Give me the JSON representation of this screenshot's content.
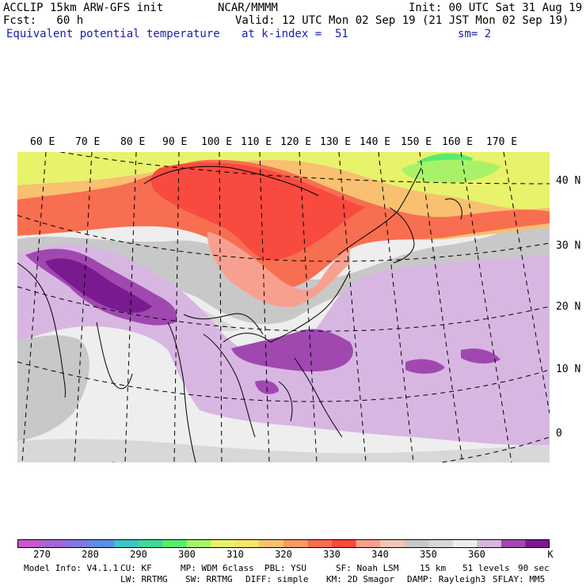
{
  "header": {
    "title_left": "ACCLIP 15km ARW-GFS init",
    "forecast": "Fcst:   60 h",
    "field": "Equivalent potential temperature",
    "center": "NCAR/MMMM",
    "init": "Init: 00 UTC Sat 31 Aug 19",
    "valid": "Valid: 12 UTC Mon 02 Sep 19 (21 JST Mon 02 Sep 19)",
    "level": "at k-index =  51",
    "smoothing": "sm= 2"
  },
  "map": {
    "lon_labels": [
      "60 E",
      "70 E",
      "80 E",
      "90 E",
      "100 E",
      "110 E",
      "120 E",
      "130 E",
      "140 E",
      "150 E",
      "160 E",
      "170 E"
    ],
    "lat_labels": [
      "40 N",
      "30 N",
      "20 N",
      "10 N",
      "0"
    ]
  },
  "colorbar": {
    "unit": "K",
    "tick_labels": [
      "270",
      "280",
      "290",
      "300",
      "310",
      "320",
      "330",
      "340",
      "350",
      "360"
    ],
    "colors": [
      "#c75ac8",
      "#a466d6",
      "#8078e0",
      "#5d8fe8",
      "#3fc4c4",
      "#3fd99a",
      "#57ec6e",
      "#a8f26a",
      "#e8f26a",
      "#f5e36a",
      "#f8c070",
      "#f89a62",
      "#f86e50",
      "#f84a3e",
      "#f8a090",
      "#f0c8b4",
      "#c8c8c8",
      "#d8d8d8",
      "#eeeeee",
      "#d8b6e2",
      "#a048b0",
      "#7a1a90"
    ]
  },
  "footer": {
    "line1": [
      "Model Info: V4.1.1",
      "CU: KF",
      "MP: WDM 6class",
      "PBL: YSU",
      "SF: Noah LSM",
      "15 km",
      "51 levels",
      "90 sec"
    ],
    "line2": [
      "LW: RRTMG",
      "SW: RRTMG",
      "DIFF: simple",
      "KM: 2D Smagor",
      "DAMP: Rayleigh3",
      "SFLAY: MM5"
    ]
  }
}
